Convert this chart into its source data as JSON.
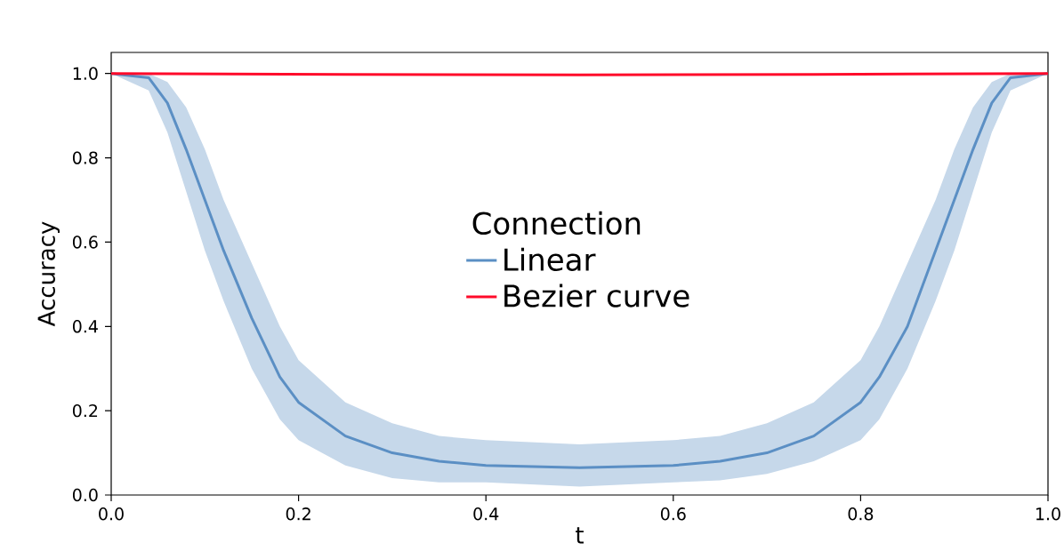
{
  "chart_data": {
    "type": "line",
    "xlabel": "t",
    "ylabel": "Accuracy",
    "legend_title": "Connection",
    "legend": "center",
    "series": [
      {
        "name": "Linear",
        "color": "#5b8fc4",
        "x": [
          0,
          0.04,
          0.06,
          0.08,
          0.1,
          0.12,
          0.15,
          0.18,
          0.2,
          0.25,
          0.3,
          0.35,
          0.4,
          0.5,
          0.6,
          0.65,
          0.7,
          0.75,
          0.8,
          0.82,
          0.85,
          0.88,
          0.9,
          0.92,
          0.94,
          0.96,
          1.0
        ],
        "values": [
          1,
          0.99,
          0.93,
          0.82,
          0.7,
          0.58,
          0.42,
          0.28,
          0.22,
          0.14,
          0.1,
          0.08,
          0.07,
          0.065,
          0.07,
          0.08,
          0.1,
          0.14,
          0.22,
          0.28,
          0.4,
          0.58,
          0.7,
          0.82,
          0.93,
          0.99,
          1
        ],
        "lower": [
          1,
          0.96,
          0.86,
          0.72,
          0.58,
          0.46,
          0.3,
          0.18,
          0.13,
          0.07,
          0.04,
          0.03,
          0.03,
          0.02,
          0.03,
          0.035,
          0.05,
          0.08,
          0.13,
          0.18,
          0.3,
          0.46,
          0.58,
          0.72,
          0.86,
          0.96,
          1
        ],
        "upper": [
          1,
          1,
          0.98,
          0.92,
          0.82,
          0.7,
          0.55,
          0.4,
          0.32,
          0.22,
          0.17,
          0.14,
          0.13,
          0.12,
          0.13,
          0.14,
          0.17,
          0.22,
          0.32,
          0.4,
          0.55,
          0.7,
          0.82,
          0.92,
          0.98,
          1,
          1
        ]
      },
      {
        "name": "Bezier curve",
        "color": "#ff0a2a",
        "x": [
          0,
          0.25,
          0.5,
          0.75,
          1.0
        ],
        "values": [
          1,
          0.998,
          0.997,
          0.998,
          1
        ]
      }
    ],
    "xlim": [
      0,
      1
    ],
    "ylim": [
      0,
      1.05
    ],
    "xticks": [
      {
        "value": 0,
        "label": "0.0"
      },
      {
        "value": 0.2,
        "label": "0.2"
      },
      {
        "value": 0.4,
        "label": "0.4"
      },
      {
        "value": 0.6,
        "label": "0.6"
      },
      {
        "value": 0.8,
        "label": "0.8"
      },
      {
        "value": 1.0,
        "label": "1.0"
      }
    ],
    "yticks": [
      {
        "value": 0,
        "label": "0.0"
      },
      {
        "value": 0.2,
        "label": "0.2"
      },
      {
        "value": 0.4,
        "label": "0.4"
      },
      {
        "value": 0.6,
        "label": "0.6"
      },
      {
        "value": 0.8,
        "label": "0.8"
      },
      {
        "value": 1.0,
        "label": "1.0"
      }
    ],
    "grid": false,
    "marker": "none",
    "line_style": "solid"
  }
}
